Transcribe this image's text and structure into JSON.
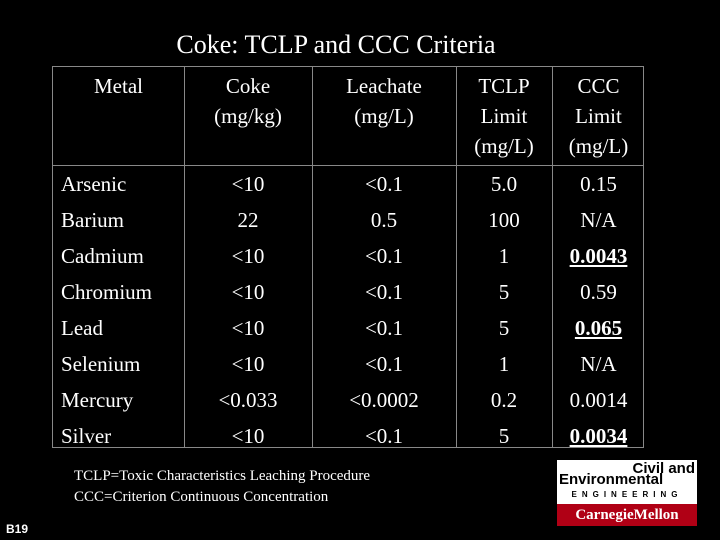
{
  "title": "Coke: TCLP and CCC Criteria",
  "table": {
    "headers": [
      [
        "Metal"
      ],
      [
        "Coke",
        "(mg/kg)"
      ],
      [
        "Leachate",
        "(mg/L)"
      ],
      [
        "TCLP",
        "Limit",
        "(mg/L)"
      ],
      [
        "CCC",
        "Limit",
        "(mg/L)"
      ]
    ],
    "rows": [
      {
        "metal": "Arsenic",
        "coke": "<10",
        "leachate": "<0.1",
        "tclp": "5.0",
        "ccc": "0.15",
        "ccc_flag": false
      },
      {
        "metal": "Barium",
        "coke": "22",
        "leachate": "0.5",
        "tclp": "100",
        "ccc": "N/A",
        "ccc_flag": false
      },
      {
        "metal": "Cadmium",
        "coke": "<10",
        "leachate": "<0.1",
        "tclp": "1",
        "ccc": "0.0043",
        "ccc_flag": true
      },
      {
        "metal": "Chromium",
        "coke": "<10",
        "leachate": "<0.1",
        "tclp": "5",
        "ccc": "0.59",
        "ccc_flag": false
      },
      {
        "metal": "Lead",
        "coke": "<10",
        "leachate": "<0.1",
        "tclp": "5",
        "ccc": "0.065",
        "ccc_flag": true
      },
      {
        "metal": "Selenium",
        "coke": "<10",
        "leachate": "<0.1",
        "tclp": "1",
        "ccc": "N/A",
        "ccc_flag": false
      },
      {
        "metal": "Mercury",
        "coke": "<0.033",
        "leachate": "<0.0002",
        "tclp": "0.2",
        "ccc": "0.0014",
        "ccc_flag": false
      },
      {
        "metal": "Silver",
        "coke": "<10",
        "leachate": "<0.1",
        "tclp": "5",
        "ccc": "0.0034",
        "ccc_flag": true
      }
    ]
  },
  "footnotes": [
    "TCLP=Toxic Characteristics Leaching Procedure",
    "CCC=Criterion Continuous Concentration"
  ],
  "slide_number": "B19",
  "logo": {
    "line1": "Civil and",
    "line2": "Environmental",
    "line3": "ENGINEERING",
    "line4": "CarnegieMellon"
  },
  "colors": {
    "background": "#000000",
    "text": "#ffffff",
    "logo_red": "#b00015"
  }
}
